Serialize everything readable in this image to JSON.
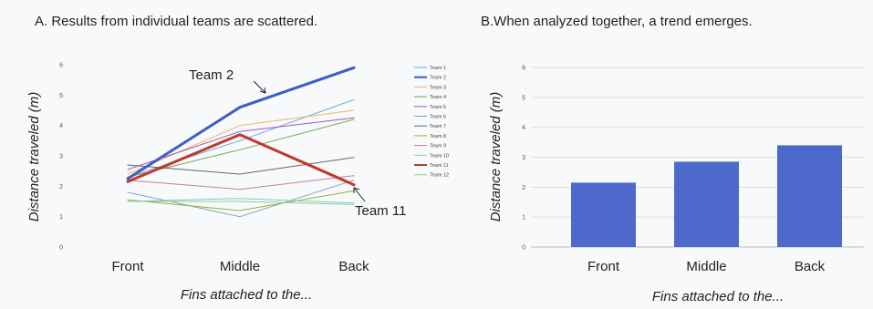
{
  "chart_data": [
    {
      "type": "line",
      "title": "A. Results from individual teams are scattered.",
      "xlabel": "Fins attached to the...",
      "ylabel": "Distance traveled (m)",
      "categories": [
        "Front",
        "Middle",
        "Back"
      ],
      "ylim": [
        0,
        6
      ],
      "yticks": [
        "0",
        "1",
        "2",
        "3",
        "4",
        "5",
        "6"
      ],
      "legend_position": "right",
      "series": [
        {
          "name": "Team 1",
          "values": [
            2.3,
            3.5,
            4.85
          ],
          "color": "#6fa8dc",
          "width": 1
        },
        {
          "name": "Team 2",
          "values": [
            2.25,
            4.6,
            5.9
          ],
          "color": "#3d5ec4",
          "width": 3
        },
        {
          "name": "Team 3",
          "values": [
            2.4,
            4.0,
            4.5
          ],
          "color": "#f0b46a",
          "width": 1
        },
        {
          "name": "Team 4",
          "values": [
            2.3,
            3.2,
            4.2
          ],
          "color": "#6aa84f",
          "width": 1
        },
        {
          "name": "Team 5",
          "values": [
            2.55,
            3.8,
            4.25
          ],
          "color": "#9b59b6",
          "width": 1
        },
        {
          "name": "Team 6",
          "values": [
            1.8,
            1.0,
            2.2
          ],
          "color": "#7aa6c8",
          "width": 1
        },
        {
          "name": "Team 7",
          "values": [
            2.7,
            2.4,
            2.95
          ],
          "color": "#666666",
          "width": 1
        },
        {
          "name": "Team 8",
          "values": [
            1.55,
            1.2,
            1.85
          ],
          "color": "#93b432",
          "width": 1
        },
        {
          "name": "Team 9",
          "values": [
            2.2,
            1.9,
            2.35
          ],
          "color": "#c77b9b",
          "width": 1
        },
        {
          "name": "Team 10",
          "values": [
            1.5,
            1.6,
            1.45
          ],
          "color": "#80c9c1",
          "width": 1
        },
        {
          "name": "Team 11",
          "values": [
            2.15,
            3.7,
            2.05
          ],
          "color": "#c0392b",
          "width": 3
        },
        {
          "name": "Team 12",
          "values": [
            1.5,
            1.5,
            1.4
          ],
          "color": "#8fce8f",
          "width": 1
        }
      ],
      "annotations": [
        {
          "text": "Team 2",
          "series": "Team 2"
        },
        {
          "text": "Team 11",
          "series": "Team 11"
        }
      ]
    },
    {
      "type": "bar",
      "title": "B.When analyzed together, a trend emerges.",
      "xlabel": "Fins attached to the...",
      "ylabel": "Distance traveled (m)",
      "categories": [
        "Front",
        "Middle",
        "Back"
      ],
      "values": [
        2.15,
        2.85,
        3.4
      ],
      "ylim": [
        0,
        6
      ],
      "yticks": [
        "0",
        "1",
        "2",
        "3",
        "4",
        "5",
        "6"
      ],
      "grid": true,
      "bar_color": "#4d69cc"
    }
  ]
}
